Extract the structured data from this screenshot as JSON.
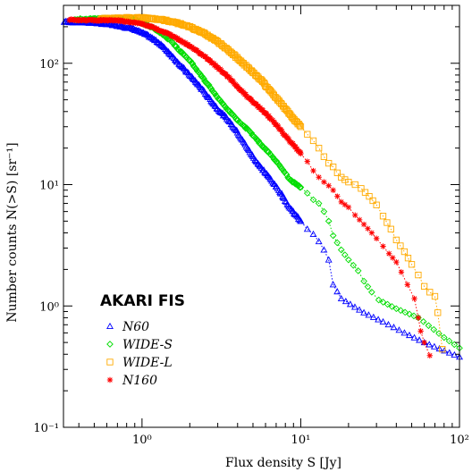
{
  "chart_data": {
    "type": "scatter",
    "xlabel": "Flux density S [Jy]",
    "ylabel": "Number counts N(>S) [sr⁻¹]",
    "x_scale": "log",
    "y_scale": "log",
    "xlim": [
      0.32,
      100
    ],
    "ylim": [
      0.1,
      300
    ],
    "x_ticks": [
      {
        "value": 1,
        "label": "10⁰"
      },
      {
        "value": 10,
        "label": "10¹"
      },
      {
        "value": 100,
        "label": "10²"
      }
    ],
    "y_ticks": [
      {
        "value": 0.1,
        "label": "10⁻¹"
      },
      {
        "value": 1,
        "label": "10⁰"
      },
      {
        "value": 10,
        "label": "10¹"
      },
      {
        "value": 100,
        "label": "10²"
      }
    ],
    "legend_title": "AKARI FIS",
    "legend_position": "lower-left",
    "grid": false,
    "series": [
      {
        "name": "N60",
        "color": "#0000ff",
        "marker": "triangle",
        "points": [
          [
            0.32,
            220
          ],
          [
            0.5,
            216
          ],
          [
            0.7,
            205
          ],
          [
            0.9,
            190
          ],
          [
            1.1,
            168
          ],
          [
            1.3,
            145
          ],
          [
            1.5,
            120
          ],
          [
            1.7,
            100
          ],
          [
            2.0,
            80
          ],
          [
            2.3,
            65
          ],
          [
            2.7,
            50
          ],
          [
            3.0,
            42
          ],
          [
            3.5,
            34
          ],
          [
            4.0,
            27
          ],
          [
            4.5,
            21
          ],
          [
            5.0,
            17
          ],
          [
            5.7,
            13.5
          ],
          [
            6.5,
            11
          ],
          [
            7.5,
            8.5
          ],
          [
            8.5,
            6.5
          ],
          [
            10,
            5.0
          ],
          [
            11,
            4.3
          ],
          [
            12,
            3.9
          ],
          [
            13,
            3.4
          ],
          [
            14,
            2.9
          ],
          [
            15,
            2.4
          ],
          [
            16,
            1.5
          ],
          [
            18,
            1.15
          ],
          [
            25,
            0.88
          ],
          [
            33,
            0.74
          ],
          [
            45,
            0.6
          ],
          [
            60,
            0.5
          ],
          [
            100,
            0.38
          ]
        ]
      },
      {
        "name": "WIDE-S",
        "color": "#00dd00",
        "marker": "diamond",
        "points": [
          [
            0.38,
            230
          ],
          [
            0.7,
            234
          ],
          [
            0.9,
            228
          ],
          [
            1.1,
            205
          ],
          [
            1.3,
            180
          ],
          [
            1.5,
            155
          ],
          [
            1.7,
            130
          ],
          [
            2.0,
            105
          ],
          [
            2.3,
            82
          ],
          [
            2.7,
            63
          ],
          [
            3.0,
            52
          ],
          [
            3.5,
            41
          ],
          [
            4.0,
            34
          ],
          [
            4.7,
            28
          ],
          [
            5.5,
            22
          ],
          [
            6.5,
            17.5
          ],
          [
            7.5,
            14
          ],
          [
            8.5,
            11
          ],
          [
            10,
            9.5
          ],
          [
            11,
            8.5
          ],
          [
            12,
            7.5
          ],
          [
            13,
            7.0
          ],
          [
            14,
            6.0
          ],
          [
            15,
            5.0
          ],
          [
            16,
            3.8
          ],
          [
            18,
            2.9
          ],
          [
            20,
            2.4
          ],
          [
            23,
            1.95
          ],
          [
            25,
            1.6
          ],
          [
            28,
            1.3
          ],
          [
            31,
            1.12
          ],
          [
            40,
            0.95
          ],
          [
            55,
            0.8
          ],
          [
            80,
            0.55
          ],
          [
            100,
            0.45
          ]
        ]
      },
      {
        "name": "WIDE-L",
        "color": "#ffaa00",
        "marker": "square",
        "points": [
          [
            0.55,
            232
          ],
          [
            0.8,
            236
          ],
          [
            1.0,
            236
          ],
          [
            1.3,
            230
          ],
          [
            1.6,
            218
          ],
          [
            2.0,
            200
          ],
          [
            2.5,
            175
          ],
          [
            3.0,
            150
          ],
          [
            3.5,
            128
          ],
          [
            4.0,
            110
          ],
          [
            4.7,
            90
          ],
          [
            5.5,
            75
          ],
          [
            6.5,
            58
          ],
          [
            7.5,
            47
          ],
          [
            8.5,
            38
          ],
          [
            10,
            30
          ],
          [
            11,
            26
          ],
          [
            12,
            23
          ],
          [
            13,
            20
          ],
          [
            14,
            17
          ],
          [
            15,
            15
          ],
          [
            16,
            14
          ],
          [
            17,
            12.5
          ],
          [
            18,
            11.5
          ],
          [
            20,
            10.5
          ],
          [
            22,
            10
          ],
          [
            24,
            9.3
          ],
          [
            27,
            8.0
          ],
          [
            30,
            6.8
          ],
          [
            33,
            5.5
          ],
          [
            37,
            4.3
          ],
          [
            40,
            3.5
          ],
          [
            45,
            2.8
          ],
          [
            50,
            2.2
          ],
          [
            55,
            1.8
          ],
          [
            60,
            1.45
          ],
          [
            65,
            1.3
          ],
          [
            70,
            1.2
          ],
          [
            73,
            0.88
          ],
          [
            78,
            0.44
          ]
        ]
      },
      {
        "name": "N160",
        "color": "#ff0000",
        "marker": "asterisk",
        "points": [
          [
            0.35,
            228
          ],
          [
            0.7,
            225
          ],
          [
            1.0,
            212
          ],
          [
            1.2,
            195
          ],
          [
            1.5,
            172
          ],
          [
            1.8,
            150
          ],
          [
            2.2,
            128
          ],
          [
            2.6,
            108
          ],
          [
            3.0,
            92
          ],
          [
            3.5,
            77
          ],
          [
            4.0,
            64
          ],
          [
            4.7,
            52
          ],
          [
            5.5,
            43
          ],
          [
            6.5,
            35
          ],
          [
            7.5,
            28
          ],
          [
            8.5,
            23
          ],
          [
            10,
            18
          ],
          [
            11,
            15.5
          ],
          [
            12,
            13
          ],
          [
            13,
            11.5
          ],
          [
            14,
            10.5
          ],
          [
            15,
            9.8
          ],
          [
            16,
            9.0
          ],
          [
            17,
            8.0
          ],
          [
            18,
            7.2
          ],
          [
            20,
            6.5
          ],
          [
            22,
            5.6
          ],
          [
            25,
            4.7
          ],
          [
            28,
            4.0
          ],
          [
            30,
            3.6
          ],
          [
            33,
            3.1
          ],
          [
            36,
            2.7
          ],
          [
            40,
            2.3
          ],
          [
            43,
            1.9
          ],
          [
            47,
            1.5
          ],
          [
            52,
            1.15
          ],
          [
            55,
            0.8
          ],
          [
            57,
            0.62
          ],
          [
            60,
            0.5
          ],
          [
            65,
            0.39
          ]
        ]
      }
    ]
  }
}
